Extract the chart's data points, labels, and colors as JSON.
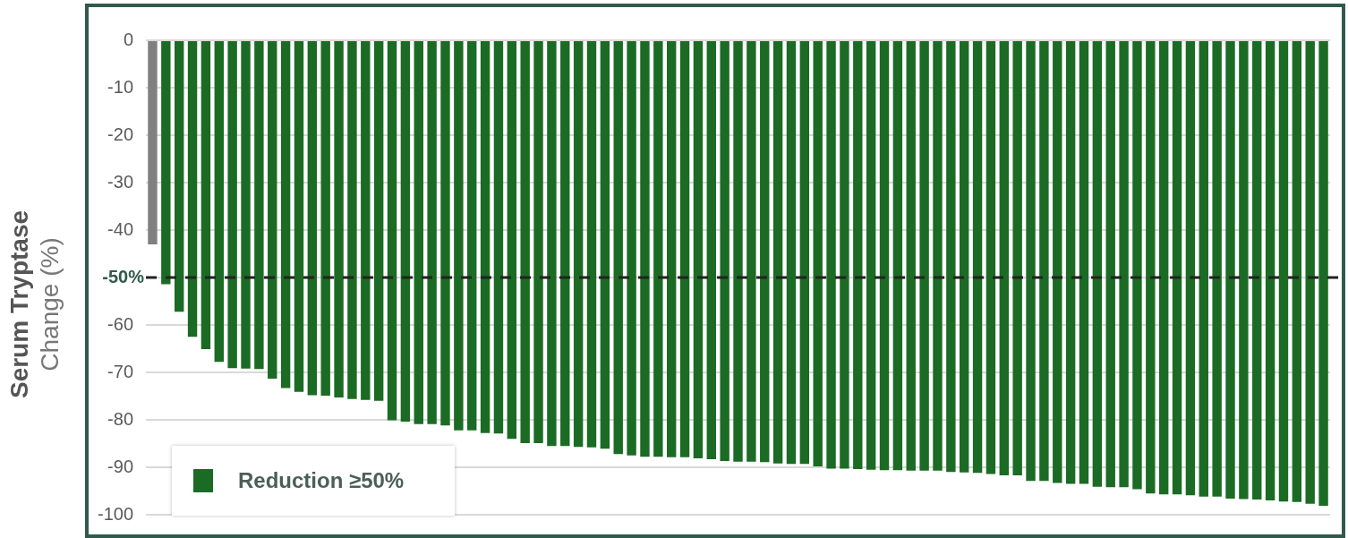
{
  "chart_data": {
    "type": "bar",
    "ylabel": "Serum Tryptase\nChange (%)",
    "categories": [
      null,
      null,
      null,
      null,
      null,
      null,
      null,
      null,
      null,
      null,
      null,
      null,
      null,
      null,
      null,
      null,
      null,
      null,
      null,
      null,
      null,
      null,
      null,
      null,
      null,
      null,
      null,
      null,
      null,
      null,
      null,
      null,
      null,
      null,
      null,
      null,
      null,
      null,
      null,
      null,
      null,
      null,
      null,
      null,
      null,
      null,
      null,
      null,
      null,
      null,
      null,
      null,
      null,
      null,
      null,
      null,
      null,
      null,
      null,
      null,
      null,
      null,
      null,
      null,
      null,
      null,
      null,
      null,
      null,
      null,
      null,
      null,
      null,
      null,
      null,
      null,
      null,
      null,
      null,
      null,
      null,
      null,
      null,
      null,
      null,
      null,
      null,
      null,
      null
    ],
    "series": [
      {
        "name": "Reduction ≥50%",
        "color": "#1b6b24",
        "values": [
          -43,
          -51.4,
          -57.2,
          -62.5,
          -65.1,
          -67.8,
          -69.1,
          -69.2,
          -69.3,
          -71.3,
          -73.3,
          -74.1,
          -74.8,
          -74.9,
          -75.3,
          -75.6,
          -75.8,
          -76.0,
          -80.1,
          -80.4,
          -80.9,
          -80.9,
          -81.2,
          -82.2,
          -82.2,
          -82.8,
          -82.9,
          -84.0,
          -84.9,
          -84.9,
          -85.5,
          -85.5,
          -85.7,
          -85.8,
          -86.1,
          -87.2,
          -87.5,
          -87.8,
          -87.8,
          -87.9,
          -87.9,
          -88.1,
          -88.3,
          -88.7,
          -88.8,
          -88.8,
          -88.9,
          -89.2,
          -89.3,
          -89.3,
          -89.8,
          -90.3,
          -90.3,
          -90.4,
          -90.5,
          -90.6,
          -90.6,
          -90.7,
          -90.7,
          -90.7,
          -91.0,
          -91.1,
          -91.2,
          -91.4,
          -91.7,
          -91.7,
          -92.9,
          -92.9,
          -93.3,
          -93.5,
          -93.5,
          -94.1,
          -94.2,
          -94.2,
          -94.6,
          -95.5,
          -95.7,
          -95.7,
          -95.9,
          -96.2,
          -96.2,
          -96.6,
          -96.7,
          -96.8,
          -97.0,
          -97.2,
          -97.3,
          -97.7,
          -98.1
        ],
        "colors": [
          "#808080",
          "#1b6b24",
          "#1b6b24",
          "#1b6b24",
          "#1b6b24",
          "#1b6b24",
          "#1b6b24",
          "#1b6b24",
          "#1b6b24",
          "#1b6b24",
          "#1b6b24",
          "#1b6b24",
          "#1b6b24",
          "#1b6b24",
          "#1b6b24",
          "#1b6b24",
          "#1b6b24",
          "#1b6b24",
          "#1b6b24",
          "#1b6b24",
          "#1b6b24",
          "#1b6b24",
          "#1b6b24",
          "#1b6b24",
          "#1b6b24",
          "#1b6b24",
          "#1b6b24",
          "#1b6b24",
          "#1b6b24",
          "#1b6b24",
          "#1b6b24",
          "#1b6b24",
          "#1b6b24",
          "#1b6b24",
          "#1b6b24",
          "#1b6b24",
          "#1b6b24",
          "#1b6b24",
          "#1b6b24",
          "#1b6b24",
          "#1b6b24",
          "#1b6b24",
          "#1b6b24",
          "#1b6b24",
          "#1b6b24",
          "#1b6b24",
          "#1b6b24",
          "#1b6b24",
          "#1b6b24",
          "#1b6b24",
          "#1b6b24",
          "#1b6b24",
          "#1b6b24",
          "#1b6b24",
          "#1b6b24",
          "#1b6b24",
          "#1b6b24",
          "#1b6b24",
          "#1b6b24",
          "#1b6b24",
          "#1b6b24",
          "#1b6b24",
          "#1b6b24",
          "#1b6b24",
          "#1b6b24",
          "#1b6b24",
          "#1b6b24",
          "#1b6b24",
          "#1b6b24",
          "#1b6b24",
          "#1b6b24",
          "#1b6b24",
          "#1b6b24",
          "#1b6b24",
          "#1b6b24",
          "#1b6b24",
          "#1b6b24",
          "#1b6b24",
          "#1b6b24",
          "#1b6b24",
          "#1b6b24",
          "#1b6b24",
          "#1b6b24",
          "#1b6b24",
          "#1b6b24",
          "#1b6b24",
          "#1b6b24",
          "#1b6b24",
          "#1b6b24"
        ]
      }
    ],
    "ylim": [
      -100,
      0
    ],
    "yticks": [
      0,
      -10,
      -20,
      -30,
      -40,
      {
        "value": -50,
        "label": null
      },
      -60,
      -70,
      -80,
      -90,
      -100
    ],
    "ref_lines": [
      {
        "axis": "y",
        "value": -50,
        "label": "-50%",
        "color": "#222222",
        "line_style": "dashed"
      }
    ],
    "grid": "y",
    "legend": "bottom left",
    "tick_labels": "y"
  }
}
